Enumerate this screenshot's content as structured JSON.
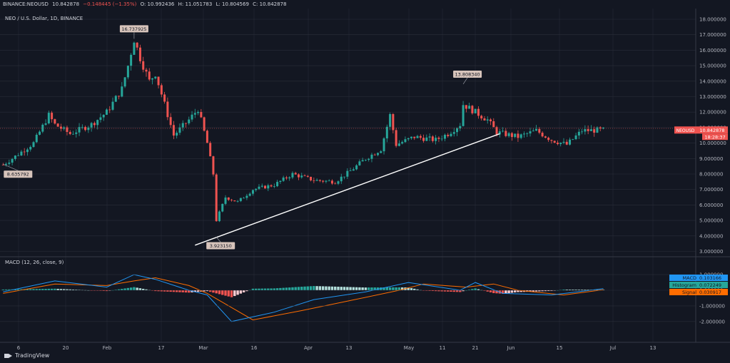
{
  "header": {
    "symbol": "BINANCE:NEOUSD",
    "last": "10.842878",
    "change": "−0.148445 (−1.35%)",
    "open": "O: 10.992436",
    "high": "H: 11.051783",
    "low": "L: 10.804569",
    "close": "C: 10.842878"
  },
  "chart_title": "NEO / U.S. Dollar, 1D, BINANCE",
  "price_axis": {
    "ticks": [
      "18.000000",
      "17.000000",
      "16.000000",
      "15.000000",
      "14.000000",
      "13.000000",
      "12.000000",
      "11.000000",
      "10.000000",
      "9.000000",
      "8.000000",
      "7.000000",
      "6.000000",
      "5.000000",
      "4.000000",
      "3.000000"
    ],
    "symbol_tag": "NEOUSD",
    "price_tag": "10.842878",
    "countdown": "18:28:37"
  },
  "time_axis": [
    "6",
    "20",
    "Feb",
    "17",
    "Mar",
    "16",
    "Apr",
    "13",
    "May",
    "11",
    "21",
    "Jun",
    "15",
    "Jul",
    "13"
  ],
  "annotations": [
    {
      "label": "16.737925"
    },
    {
      "label": "13.808340"
    },
    {
      "label": "8.635792"
    },
    {
      "label": "3.923150"
    }
  ],
  "macd": {
    "title": "MACD (12, 26, close, 9)",
    "ticks": [
      "1.000000",
      "0.000000",
      "-1.000000",
      "-2.000000"
    ],
    "tags": [
      {
        "name": "MACD",
        "value": "0.103166",
        "color": "#2196f3"
      },
      {
        "name": "Histogram",
        "value": "0.072249",
        "color": "#26a69a"
      },
      {
        "name": "Signal",
        "value": "0.030917",
        "color": "#ff6d00"
      }
    ]
  },
  "footer": {
    "brand": "TradingView"
  },
  "colors": {
    "up": "#26a69a",
    "down": "#ef5350",
    "background": "#131722",
    "grid": "#2a2e39",
    "trendline": "#ffffff"
  },
  "chart_data": {
    "type": "candlestick",
    "symbol": "NEOUSD",
    "interval": "1D",
    "ylim": [
      3,
      18
    ],
    "x_tick_labels": [
      "6",
      "20",
      "Feb",
      "17",
      "Mar",
      "16",
      "Apr",
      "13",
      "May",
      "11",
      "21",
      "Jun",
      "15",
      "Jul",
      "13"
    ],
    "close_path": [
      {
        "x": "Jan 03",
        "y": 8.6
      },
      {
        "x": "Jan 06",
        "y": 9.0
      },
      {
        "x": "Jan 13",
        "y": 10.0
      },
      {
        "x": "Jan 18",
        "y": 11.8
      },
      {
        "x": "Jan 20",
        "y": 11.2
      },
      {
        "x": "Jan 25",
        "y": 10.6
      },
      {
        "x": "Feb 01",
        "y": 11.2
      },
      {
        "x": "Feb 06",
        "y": 12.0
      },
      {
        "x": "Feb 11",
        "y": 13.5
      },
      {
        "x": "Feb 13",
        "y": 15.0
      },
      {
        "x": "Feb 15",
        "y": 16.7
      },
      {
        "x": "Feb 17",
        "y": 15.5
      },
      {
        "x": "Feb 20",
        "y": 14.0
      },
      {
        "x": "Feb 22",
        "y": 14.5
      },
      {
        "x": "Feb 25",
        "y": 12.5
      },
      {
        "x": "Feb 28",
        "y": 10.5
      },
      {
        "x": "Mar 04",
        "y": 11.5
      },
      {
        "x": "Mar 07",
        "y": 12.2
      },
      {
        "x": "Mar 10",
        "y": 10.0
      },
      {
        "x": "Mar 12",
        "y": 8.0
      },
      {
        "x": "Mar 13",
        "y": 5.0
      },
      {
        "x": "Mar 16",
        "y": 6.5
      },
      {
        "x": "Mar 20",
        "y": 6.2
      },
      {
        "x": "Mar 25",
        "y": 7.0
      },
      {
        "x": "Apr 01",
        "y": 7.3
      },
      {
        "x": "Apr 07",
        "y": 8.0
      },
      {
        "x": "Apr 14",
        "y": 7.6
      },
      {
        "x": "Apr 21",
        "y": 7.5
      },
      {
        "x": "Apr 26",
        "y": 8.2
      },
      {
        "x": "May 01",
        "y": 9.0
      },
      {
        "x": "May 06",
        "y": 9.6
      },
      {
        "x": "May 09",
        "y": 11.8
      },
      {
        "x": "May 11",
        "y": 9.9
      },
      {
        "x": "May 17",
        "y": 10.4
      },
      {
        "x": "May 24",
        "y": 10.2
      },
      {
        "x": "May 28",
        "y": 10.6
      },
      {
        "x": "Jun 01",
        "y": 11.2
      },
      {
        "x": "Jun 02",
        "y": 12.5
      },
      {
        "x": "Jun 06",
        "y": 12.0
      },
      {
        "x": "Jun 10",
        "y": 11.5
      },
      {
        "x": "Jun 13",
        "y": 10.7
      },
      {
        "x": "Jun 20",
        "y": 10.4
      },
      {
        "x": "Jun 26",
        "y": 10.8
      },
      {
        "x": "Jul 01",
        "y": 10.2
      },
      {
        "x": "Jul 06",
        "y": 9.9
      },
      {
        "x": "Jul 11",
        "y": 10.8
      },
      {
        "x": "Jul 18",
        "y": 10.84
      }
    ],
    "annotated_points": [
      {
        "label": "16.737925",
        "x": "Feb 15",
        "y": 16.737925
      },
      {
        "label": "13.808340",
        "x": "Jun 02",
        "y": 13.80834
      },
      {
        "label": "8.635792",
        "x": "Jan 03",
        "y": 8.635792
      },
      {
        "label": "3.923150",
        "x": "Mar 13",
        "y": 3.92315
      }
    ],
    "trendline": {
      "from": {
        "x": "Mar 06",
        "y": 3.4
      },
      "to": {
        "x": "Jun 14",
        "y": 10.6
      }
    },
    "last_price": 10.842878,
    "macd": {
      "params": "12, 26, close, 9",
      "ylim": [
        -2.2,
        1.2
      ],
      "macd_line": [
        {
          "x": "Jan 03",
          "y": -0.1
        },
        {
          "x": "Jan 20",
          "y": 0.6
        },
        {
          "x": "Feb 06",
          "y": 0.2
        },
        {
          "x": "Feb 15",
          "y": 1.0
        },
        {
          "x": "Feb 22",
          "y": 0.7
        },
        {
          "x": "Mar 04",
          "y": 0.0
        },
        {
          "x": "Mar 10",
          "y": -0.3
        },
        {
          "x": "Mar 18",
          "y": -2.0
        },
        {
          "x": "Apr 01",
          "y": -1.4
        },
        {
          "x": "Apr 14",
          "y": -0.6
        },
        {
          "x": "May 01",
          "y": -0.1
        },
        {
          "x": "May 15",
          "y": 0.5
        },
        {
          "x": "Jun 01",
          "y": 0.0
        },
        {
          "x": "Jun 06",
          "y": 0.5
        },
        {
          "x": "Jun 15",
          "y": -0.2
        },
        {
          "x": "Jul 01",
          "y": -0.3
        },
        {
          "x": "Jul 18",
          "y": 0.1
        }
      ],
      "signal_line": [
        {
          "x": "Jan 03",
          "y": -0.2
        },
        {
          "x": "Jan 20",
          "y": 0.4
        },
        {
          "x": "Feb 06",
          "y": 0.3
        },
        {
          "x": "Feb 15",
          "y": 0.6
        },
        {
          "x": "Feb 22",
          "y": 0.8
        },
        {
          "x": "Mar 04",
          "y": 0.3
        },
        {
          "x": "Mar 10",
          "y": -0.2
        },
        {
          "x": "Mar 25",
          "y": -1.9
        },
        {
          "x": "Apr 10",
          "y": -1.3
        },
        {
          "x": "Apr 25",
          "y": -0.7
        },
        {
          "x": "May 12",
          "y": 0.0
        },
        {
          "x": "May 20",
          "y": 0.4
        },
        {
          "x": "Jun 03",
          "y": 0.2
        },
        {
          "x": "Jun 12",
          "y": 0.4
        },
        {
          "x": "Jun 20",
          "y": 0.0
        },
        {
          "x": "Jul 05",
          "y": -0.3
        },
        {
          "x": "Jul 18",
          "y": 0.03
        }
      ],
      "last_values": {
        "macd": 0.103166,
        "histogram": 0.072249,
        "signal": 0.030917
      }
    }
  }
}
